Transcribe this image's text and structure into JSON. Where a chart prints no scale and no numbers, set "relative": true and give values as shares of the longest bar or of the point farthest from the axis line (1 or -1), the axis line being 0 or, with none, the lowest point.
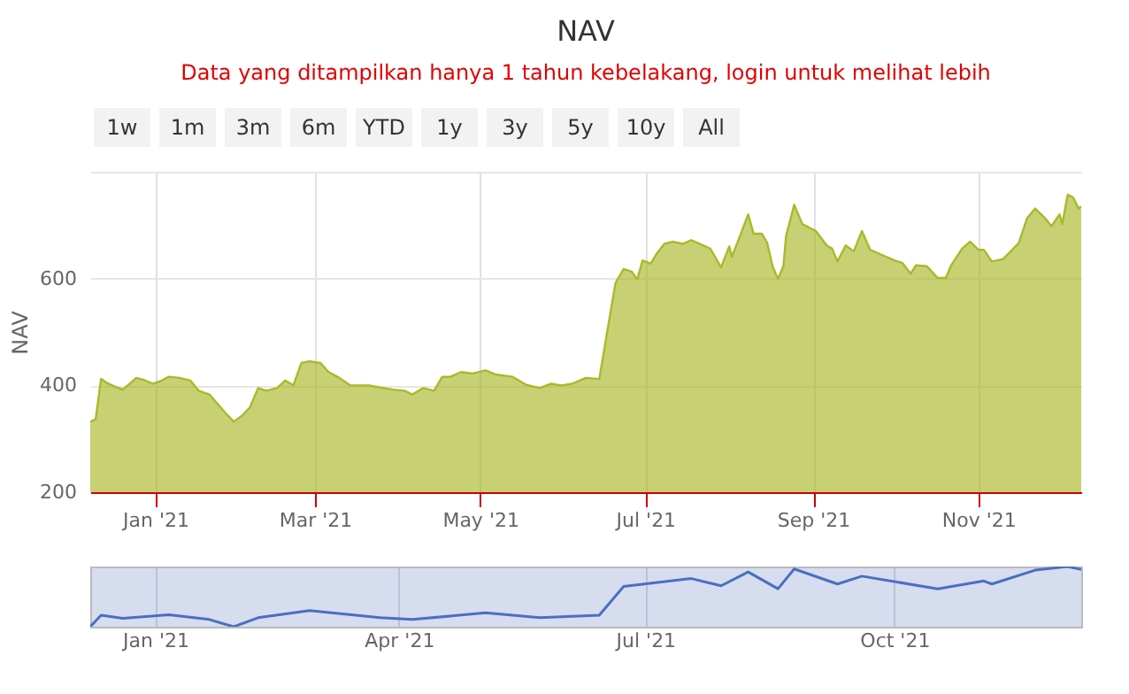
{
  "chart_data": [
    {
      "type": "area",
      "title": "NAV",
      "subtitle": "Data yang ditampilkan hanya 1 tahun kebelakang, login untuk melihat lebih",
      "ylabel": "NAV",
      "annotations": [
        "1w",
        "1m",
        "3m",
        "6m",
        "YTD",
        "1y",
        "3y",
        "5y",
        "10y",
        "All"
      ],
      "x": [
        "2020-12-08",
        "2020-12-10",
        "2020-12-12",
        "2020-12-14",
        "2020-12-17",
        "2020-12-20",
        "2020-12-23",
        "2020-12-25",
        "2020-12-28",
        "2020-12-31",
        "2021-01-03",
        "2021-01-06",
        "2021-01-10",
        "2021-01-14",
        "2021-01-17",
        "2021-01-21",
        "2021-01-27",
        "2021-01-30",
        "2021-02-02",
        "2021-02-05",
        "2021-02-08",
        "2021-02-11",
        "2021-02-15",
        "2021-02-18",
        "2021-02-21",
        "2021-02-24",
        "2021-02-27",
        "2021-03-03",
        "2021-03-06",
        "2021-03-10",
        "2021-03-14",
        "2021-03-21",
        "2021-03-25",
        "2021-03-30",
        "2021-04-03",
        "2021-04-06",
        "2021-04-10",
        "2021-04-14",
        "2021-04-17",
        "2021-04-20",
        "2021-04-24",
        "2021-04-28",
        "2021-05-03",
        "2021-05-07",
        "2021-05-13",
        "2021-05-18",
        "2021-05-23",
        "2021-05-27",
        "2021-05-31",
        "2021-06-04",
        "2021-06-09",
        "2021-06-14",
        "2021-06-17",
        "2021-06-20",
        "2021-06-23",
        "2021-06-26",
        "2021-06-28",
        "2021-06-30",
        "2021-07-03",
        "2021-07-05",
        "2021-07-08",
        "2021-07-11",
        "2021-07-15",
        "2021-07-18",
        "2021-07-21",
        "2021-07-25",
        "2021-07-29",
        "2021-08-01",
        "2021-08-02",
        "2021-08-05",
        "2021-08-08",
        "2021-08-10",
        "2021-08-13",
        "2021-08-15",
        "2021-08-17",
        "2021-08-19",
        "2021-08-21",
        "2021-08-22",
        "2021-08-25",
        "2021-08-28",
        "2021-09-02",
        "2021-09-06",
        "2021-09-08",
        "2021-09-10",
        "2021-09-13",
        "2021-09-16",
        "2021-09-19",
        "2021-09-22",
        "2021-09-26",
        "2021-10-01",
        "2021-10-04",
        "2021-10-07",
        "2021-10-09",
        "2021-10-13",
        "2021-10-17",
        "2021-10-20",
        "2021-10-22",
        "2021-10-26",
        "2021-10-29",
        "2021-11-01",
        "2021-11-03",
        "2021-11-06",
        "2021-11-10",
        "2021-11-13",
        "2021-11-16",
        "2021-11-19",
        "2021-11-22",
        "2021-11-26",
        "2021-11-28",
        "2021-12-01",
        "2021-12-02",
        "2021-12-04",
        "2021-12-06",
        "2021-12-08",
        "2021-12-09"
      ],
      "series": [
        {
          "color": "#a9b92a",
          "values": [
            332,
            337,
            412,
            405,
            398,
            392,
            405,
            414,
            410,
            403,
            408,
            416,
            414,
            409,
            390,
            383,
            348,
            332,
            343,
            359,
            395,
            390,
            395,
            409,
            400,
            442,
            445,
            442,
            425,
            414,
            400,
            400,
            396,
            392,
            390,
            383,
            395,
            390,
            416,
            416,
            425,
            422,
            428,
            420,
            416,
            401,
            395,
            403,
            400,
            403,
            414,
            412,
            502,
            592,
            618,
            613,
            598,
            634,
            628,
            645,
            665,
            669,
            665,
            672,
            665,
            656,
            621,
            660,
            641,
            680,
            720,
            684,
            684,
            667,
            623,
            599,
            623,
            680,
            738,
            702,
            689,
            662,
            656,
            632,
            662,
            651,
            689,
            654,
            645,
            634,
            629,
            609,
            625,
            623,
            601,
            601,
            625,
            656,
            669,
            654,
            654,
            632,
            636,
            651,
            667,
            713,
            731,
            711,
            698,
            720,
            702,
            757,
            752,
            731,
            735
          ]
        }
      ],
      "xlim": [
        "2020-12-08",
        "2021-12-09"
      ],
      "xticks": [
        {
          "value": "2021-01-01",
          "label": "Jan '21"
        },
        {
          "value": "2021-03-01",
          "label": "Mar '21"
        },
        {
          "value": "2021-05-01",
          "label": "May '21"
        },
        {
          "value": "2021-07-01",
          "label": "Jul '21"
        },
        {
          "value": "2021-09-01",
          "label": "Sep '21"
        },
        {
          "value": "2021-11-01",
          "label": "Nov '21"
        }
      ],
      "ylim": [
        200,
        800
      ],
      "yticks": [
        200,
        400,
        600,
        {
          "value": 800,
          "label": null
        }
      ],
      "grid": true
    },
    {
      "type": "line",
      "relative": true,
      "tick_labels": "x",
      "x": [
        "2020-12-08",
        "2020-12-12",
        "2020-12-20",
        "2021-01-06",
        "2021-01-21",
        "2021-01-30",
        "2021-02-08",
        "2021-02-27",
        "2021-03-25",
        "2021-04-06",
        "2021-05-03",
        "2021-05-23",
        "2021-06-14",
        "2021-06-23",
        "2021-07-18",
        "2021-07-29",
        "2021-08-08",
        "2021-08-19",
        "2021-08-25",
        "2021-09-10",
        "2021-09-19",
        "2021-10-17",
        "2021-11-03",
        "2021-11-06",
        "2021-11-22",
        "2021-12-04",
        "2021-12-09"
      ],
      "series": [
        {
          "color": "#4a6fc0",
          "values": [
            0,
            0.19,
            0.14,
            0.2,
            0.12,
            0,
            0.15,
            0.27,
            0.15,
            0.12,
            0.23,
            0.15,
            0.19,
            0.67,
            0.8,
            0.68,
            0.91,
            0.63,
            0.96,
            0.71,
            0.84,
            0.63,
            0.76,
            0.71,
            0.94,
            1,
            0.95
          ]
        }
      ],
      "xlim": [
        "2020-12-08",
        "2021-12-09"
      ],
      "xticks": [
        {
          "value": "2021-01-01",
          "label": "Jan '21"
        },
        {
          "value": "2021-04-01",
          "label": "Apr '21"
        },
        {
          "value": "2021-07-01",
          "label": "Jul '21"
        },
        {
          "value": "2021-10-01",
          "label": "Oct '21"
        }
      ],
      "grid": "x"
    }
  ]
}
